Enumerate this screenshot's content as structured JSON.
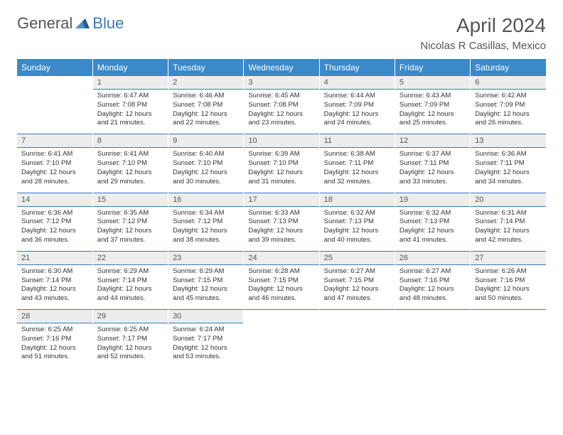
{
  "logo": {
    "text_general": "General",
    "text_blue": "Blue"
  },
  "title": "April 2024",
  "location": "Nicolas R Casillas, Mexico",
  "colors": {
    "header_bg": "#3a8ac9",
    "accent": "#3a7ab8",
    "daynum_bg": "#ededed",
    "text_muted": "#555555",
    "text": "#333333"
  },
  "day_headers": [
    "Sunday",
    "Monday",
    "Tuesday",
    "Wednesday",
    "Thursday",
    "Friday",
    "Saturday"
  ],
  "weeks": [
    [
      {
        "num": "",
        "lines": [
          "",
          "",
          "",
          ""
        ]
      },
      {
        "num": "1",
        "lines": [
          "Sunrise: 6:47 AM",
          "Sunset: 7:08 PM",
          "Daylight: 12 hours",
          "and 21 minutes."
        ]
      },
      {
        "num": "2",
        "lines": [
          "Sunrise: 6:46 AM",
          "Sunset: 7:08 PM",
          "Daylight: 12 hours",
          "and 22 minutes."
        ]
      },
      {
        "num": "3",
        "lines": [
          "Sunrise: 6:45 AM",
          "Sunset: 7:08 PM",
          "Daylight: 12 hours",
          "and 23 minutes."
        ]
      },
      {
        "num": "4",
        "lines": [
          "Sunrise: 6:44 AM",
          "Sunset: 7:09 PM",
          "Daylight: 12 hours",
          "and 24 minutes."
        ]
      },
      {
        "num": "5",
        "lines": [
          "Sunrise: 6:43 AM",
          "Sunset: 7:09 PM",
          "Daylight: 12 hours",
          "and 25 minutes."
        ]
      },
      {
        "num": "6",
        "lines": [
          "Sunrise: 6:42 AM",
          "Sunset: 7:09 PM",
          "Daylight: 12 hours",
          "and 26 minutes."
        ]
      }
    ],
    [
      {
        "num": "7",
        "lines": [
          "Sunrise: 6:41 AM",
          "Sunset: 7:10 PM",
          "Daylight: 12 hours",
          "and 28 minutes."
        ]
      },
      {
        "num": "8",
        "lines": [
          "Sunrise: 6:41 AM",
          "Sunset: 7:10 PM",
          "Daylight: 12 hours",
          "and 29 minutes."
        ]
      },
      {
        "num": "9",
        "lines": [
          "Sunrise: 6:40 AM",
          "Sunset: 7:10 PM",
          "Daylight: 12 hours",
          "and 30 minutes."
        ]
      },
      {
        "num": "10",
        "lines": [
          "Sunrise: 6:39 AM",
          "Sunset: 7:10 PM",
          "Daylight: 12 hours",
          "and 31 minutes."
        ]
      },
      {
        "num": "11",
        "lines": [
          "Sunrise: 6:38 AM",
          "Sunset: 7:11 PM",
          "Daylight: 12 hours",
          "and 32 minutes."
        ]
      },
      {
        "num": "12",
        "lines": [
          "Sunrise: 6:37 AM",
          "Sunset: 7:11 PM",
          "Daylight: 12 hours",
          "and 33 minutes."
        ]
      },
      {
        "num": "13",
        "lines": [
          "Sunrise: 6:36 AM",
          "Sunset: 7:11 PM",
          "Daylight: 12 hours",
          "and 34 minutes."
        ]
      }
    ],
    [
      {
        "num": "14",
        "lines": [
          "Sunrise: 6:36 AM",
          "Sunset: 7:12 PM",
          "Daylight: 12 hours",
          "and 36 minutes."
        ]
      },
      {
        "num": "15",
        "lines": [
          "Sunrise: 6:35 AM",
          "Sunset: 7:12 PM",
          "Daylight: 12 hours",
          "and 37 minutes."
        ]
      },
      {
        "num": "16",
        "lines": [
          "Sunrise: 6:34 AM",
          "Sunset: 7:12 PM",
          "Daylight: 12 hours",
          "and 38 minutes."
        ]
      },
      {
        "num": "17",
        "lines": [
          "Sunrise: 6:33 AM",
          "Sunset: 7:13 PM",
          "Daylight: 12 hours",
          "and 39 minutes."
        ]
      },
      {
        "num": "18",
        "lines": [
          "Sunrise: 6:32 AM",
          "Sunset: 7:13 PM",
          "Daylight: 12 hours",
          "and 40 minutes."
        ]
      },
      {
        "num": "19",
        "lines": [
          "Sunrise: 6:32 AM",
          "Sunset: 7:13 PM",
          "Daylight: 12 hours",
          "and 41 minutes."
        ]
      },
      {
        "num": "20",
        "lines": [
          "Sunrise: 6:31 AM",
          "Sunset: 7:14 PM",
          "Daylight: 12 hours",
          "and 42 minutes."
        ]
      }
    ],
    [
      {
        "num": "21",
        "lines": [
          "Sunrise: 6:30 AM",
          "Sunset: 7:14 PM",
          "Daylight: 12 hours",
          "and 43 minutes."
        ]
      },
      {
        "num": "22",
        "lines": [
          "Sunrise: 6:29 AM",
          "Sunset: 7:14 PM",
          "Daylight: 12 hours",
          "and 44 minutes."
        ]
      },
      {
        "num": "23",
        "lines": [
          "Sunrise: 6:29 AM",
          "Sunset: 7:15 PM",
          "Daylight: 12 hours",
          "and 45 minutes."
        ]
      },
      {
        "num": "24",
        "lines": [
          "Sunrise: 6:28 AM",
          "Sunset: 7:15 PM",
          "Daylight: 12 hours",
          "and 46 minutes."
        ]
      },
      {
        "num": "25",
        "lines": [
          "Sunrise: 6:27 AM",
          "Sunset: 7:15 PM",
          "Daylight: 12 hours",
          "and 47 minutes."
        ]
      },
      {
        "num": "26",
        "lines": [
          "Sunrise: 6:27 AM",
          "Sunset: 7:16 PM",
          "Daylight: 12 hours",
          "and 48 minutes."
        ]
      },
      {
        "num": "27",
        "lines": [
          "Sunrise: 6:26 AM",
          "Sunset: 7:16 PM",
          "Daylight: 12 hours",
          "and 50 minutes."
        ]
      }
    ],
    [
      {
        "num": "28",
        "lines": [
          "Sunrise: 6:25 AM",
          "Sunset: 7:16 PM",
          "Daylight: 12 hours",
          "and 51 minutes."
        ]
      },
      {
        "num": "29",
        "lines": [
          "Sunrise: 6:25 AM",
          "Sunset: 7:17 PM",
          "Daylight: 12 hours",
          "and 52 minutes."
        ]
      },
      {
        "num": "30",
        "lines": [
          "Sunrise: 6:24 AM",
          "Sunset: 7:17 PM",
          "Daylight: 12 hours",
          "and 53 minutes."
        ]
      },
      {
        "num": "",
        "lines": [
          "",
          "",
          "",
          ""
        ]
      },
      {
        "num": "",
        "lines": [
          "",
          "",
          "",
          ""
        ]
      },
      {
        "num": "",
        "lines": [
          "",
          "",
          "",
          ""
        ]
      },
      {
        "num": "",
        "lines": [
          "",
          "",
          "",
          ""
        ]
      }
    ]
  ]
}
